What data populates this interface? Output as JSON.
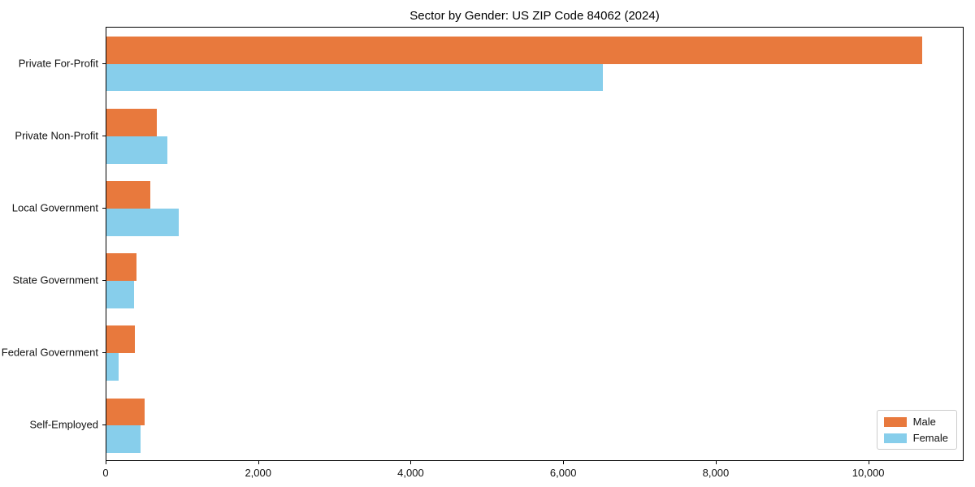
{
  "title": "Sector by Gender: US ZIP Code 84062 (2024)",
  "chart_data": {
    "type": "bar",
    "orientation": "horizontal",
    "title": "Sector by Gender: US ZIP Code 84062 (2024)",
    "categories": [
      "Private For-Profit",
      "Private Non-Profit",
      "Local Government",
      "State Government",
      "Federal Government",
      "Self-Employed"
    ],
    "series": [
      {
        "name": "Male",
        "color": "#e8793d",
        "values": [
          10710,
          670,
          590,
          400,
          380,
          510
        ]
      },
      {
        "name": "Female",
        "color": "#87ceeb",
        "values": [
          6520,
          810,
          960,
          370,
          170,
          460
        ]
      }
    ],
    "xlabel": "",
    "ylabel": "",
    "xlim": [
      0,
      11250
    ],
    "xticks": [
      0,
      2000,
      4000,
      6000,
      8000,
      10000
    ],
    "xtick_labels": [
      "0",
      "2,000",
      "4,000",
      "6,000",
      "8,000",
      "10,000"
    ],
    "grid": false,
    "legend_position": "lower right"
  },
  "legend": {
    "items": [
      {
        "label": "Male",
        "color": "#e8793d"
      },
      {
        "label": "Female",
        "color": "#87ceeb"
      }
    ]
  }
}
